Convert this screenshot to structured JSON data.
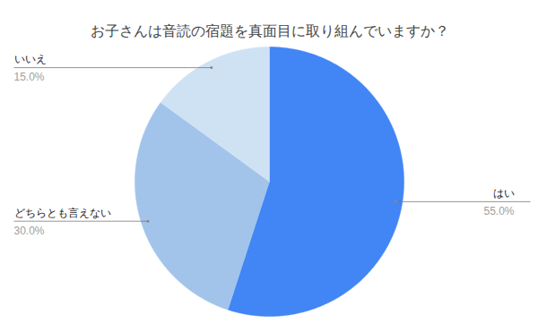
{
  "chart_data": {
    "type": "pie",
    "title": "お子さんは音読の宿題を真面目に取り組んでいますか？",
    "categories": [
      "はい",
      "どちらとも言えない",
      "いいえ"
    ],
    "values": [
      55,
      30,
      15
    ],
    "value_labels": [
      "55.0%",
      "30.0%",
      "15.0%"
    ],
    "colors": [
      "#4285f4",
      "#a2c4ea",
      "#cfe2f3"
    ],
    "data_labels": true
  }
}
